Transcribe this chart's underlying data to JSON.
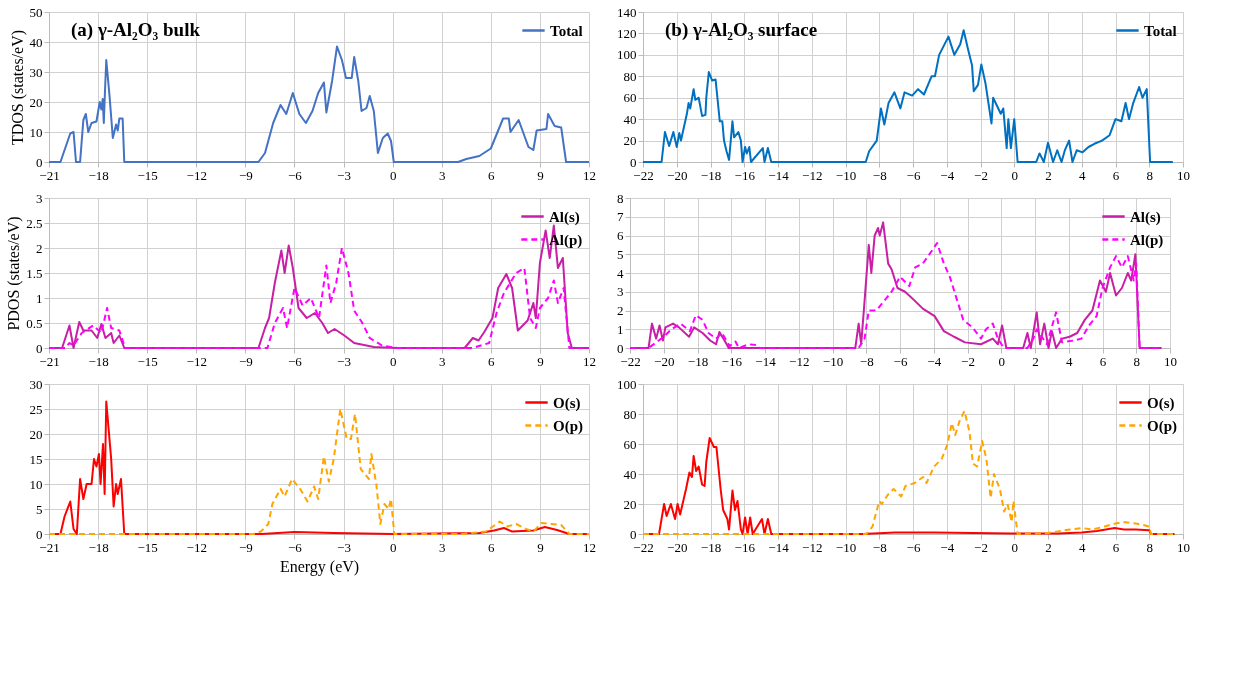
{
  "chart_data": [
    {
      "type": "line",
      "title": "(a) γ-Al₂O₃ bulk",
      "ylabel": "TDOS (states/eV)",
      "xlim": [
        -21,
        12
      ],
      "xticks": [
        -21,
        -18,
        -15,
        -12,
        -9,
        -6,
        -3,
        0,
        3,
        6,
        9,
        12
      ],
      "ylim": [
        0,
        50
      ],
      "yticks": [
        0,
        10,
        20,
        30,
        40,
        50
      ],
      "grid": true,
      "legend": "top right",
      "series": [
        {
          "name": "Total",
          "color": "#4472c4",
          "line_style": "solid",
          "x": [
            -21,
            -20.3,
            -19.7,
            -19.5,
            -19.35,
            -19.1,
            -18.9,
            -18.75,
            -18.6,
            -18.4,
            -18.1,
            -17.9,
            -17.8,
            -17.72,
            -17.65,
            -17.58,
            -17.5,
            -17.3,
            -17.1,
            -16.9,
            -16.8,
            -16.7,
            -16.5,
            -16.4,
            -8.2,
            -7.8,
            -7.3,
            -6.85,
            -6.5,
            -6.1,
            -5.7,
            -5.3,
            -4.9,
            -4.55,
            -4.2,
            -4.05,
            -3.7,
            -3.4,
            -3.1,
            -2.85,
            -2.5,
            -2.35,
            -2.1,
            -1.9,
            -1.6,
            -1.4,
            -1.15,
            -0.9,
            -0.6,
            -0.3,
            -0.1,
            0.07,
            4.0,
            4.5,
            5.3,
            6.0,
            6.75,
            7.1,
            7.2,
            7.7,
            8.3,
            8.6,
            8.8,
            9.4,
            9.5,
            9.9,
            10.3,
            10.6,
            12
          ],
          "values": [
            0,
            0,
            9.5,
            10,
            0,
            0,
            14,
            16,
            10,
            13,
            13.5,
            20,
            17.5,
            21,
            13,
            23.5,
            34,
            22,
            8,
            12.5,
            10.5,
            14.5,
            14.5,
            0,
            0,
            3,
            13,
            19,
            16,
            23,
            16,
            13,
            17,
            23,
            26.5,
            16.5,
            27,
            38.5,
            34,
            28,
            28,
            35,
            27,
            17,
            18,
            22,
            17,
            3,
            8,
            9.5,
            7,
            0,
            0,
            1,
            2,
            4.5,
            14.5,
            14.5,
            10,
            14,
            5,
            4,
            10.5,
            11,
            16,
            12,
            11.5,
            0,
            0
          ]
        }
      ]
    },
    {
      "type": "line",
      "title": "(b) γ-Al₂O₃ surface",
      "xlim": [
        -22,
        10
      ],
      "xticks": [
        -22,
        -20,
        -18,
        -16,
        -14,
        -12,
        -10,
        -8,
        -6,
        -4,
        -2,
        0,
        2,
        4,
        6,
        8,
        10
      ],
      "ylim": [
        0,
        140
      ],
      "yticks": [
        0,
        20,
        40,
        60,
        80,
        100,
        120,
        140
      ],
      "grid": true,
      "legend": "top right",
      "series": [
        {
          "name": "Total",
          "color": "#0070c0",
          "line_style": "solid",
          "x": [
            -22,
            -20.9,
            -20.7,
            -20.45,
            -20.2,
            -20.0,
            -19.85,
            -19.75,
            -19.4,
            -19.3,
            -19.2,
            -19.0,
            -18.9,
            -18.7,
            -18.5,
            -18.3,
            -18.25,
            -18.1,
            -17.9,
            -17.7,
            -17.45,
            -17.3,
            -17.2,
            -17.05,
            -16.9,
            -16.7,
            -16.6,
            -16.35,
            -16.2,
            -16.1,
            -15.95,
            -15.85,
            -15.7,
            -15.6,
            -14.9,
            -14.8,
            -14.6,
            -14.4,
            -8.8,
            -8.6,
            -8.15,
            -7.9,
            -7.7,
            -7.45,
            -7.1,
            -6.75,
            -6.5,
            -6.05,
            -5.7,
            -5.35,
            -4.9,
            -4.7,
            -4.45,
            -3.9,
            -3.55,
            -3.2,
            -3.0,
            -2.75,
            -2.5,
            -2.4,
            -2.15,
            -1.95,
            -1.7,
            -1.35,
            -1.25,
            -0.8,
            -0.65,
            -0.45,
            -0.35,
            -0.2,
            0.0,
            0.2,
            1.3,
            1.5,
            1.75,
            2.0,
            2.3,
            2.55,
            2.8,
            3.0,
            3.25,
            3.45,
            3.7,
            4.05,
            4.4,
            4.75,
            5.2,
            5.65,
            6.0,
            6.35,
            6.6,
            6.8,
            7.05,
            7.4,
            7.6,
            7.85,
            8.05,
            9.4
          ],
          "values": [
            0,
            0,
            28,
            15,
            28,
            14,
            27,
            20,
            45,
            55,
            50,
            68,
            58,
            60,
            43,
            44,
            60,
            84,
            76,
            77,
            38,
            38,
            20,
            10,
            2,
            38,
            23,
            28,
            20,
            0,
            14,
            8,
            14,
            0,
            13,
            0,
            13,
            0,
            0,
            10,
            20,
            50,
            35,
            55,
            65,
            50,
            65,
            62,
            68,
            63,
            80,
            80,
            100,
            117,
            100,
            110,
            123,
            106,
            90,
            66,
            72,
            91,
            73,
            36,
            60,
            45,
            50,
            13,
            40,
            13,
            40,
            0,
            0,
            8,
            0,
            18,
            0,
            11,
            0,
            11,
            20,
            0,
            11,
            9,
            14,
            17,
            20,
            25,
            40,
            38,
            55,
            40,
            55,
            70,
            60,
            68,
            0,
            0
          ]
        }
      ]
    },
    {
      "type": "line",
      "ylabel": "PDOS (states/eV)",
      "xlim": [
        -21,
        12
      ],
      "xticks": [
        -21,
        -18,
        -15,
        -12,
        -9,
        -6,
        -3,
        0,
        3,
        6,
        9,
        12
      ],
      "ylim": [
        0,
        3
      ],
      "yticks": [
        0,
        0.5,
        1,
        1.5,
        2,
        2.5,
        3
      ],
      "grid": true,
      "legend": "top right",
      "series": [
        {
          "name": "Al(s)",
          "color": "#c71fa5",
          "line_style": "solid",
          "x": [
            -21,
            -20.2,
            -19.75,
            -19.5,
            -19.15,
            -18.9,
            -18.4,
            -18.05,
            -17.8,
            -17.55,
            -17.2,
            -17.05,
            -16.7,
            -16.4,
            -8.2,
            -7.8,
            -7.55,
            -7.2,
            -6.8,
            -6.6,
            -6.35,
            -6.1,
            -5.75,
            -5.25,
            -4.75,
            -4.3,
            -3.95,
            -3.55,
            -2.95,
            -2.35,
            -1.15,
            0.3,
            4.4,
            4.9,
            5.25,
            5.6,
            6.1,
            6.45,
            6.95,
            7.3,
            7.65,
            8.25,
            8.6,
            8.75,
            9.0,
            9.35,
            9.6,
            9.85,
            10.1,
            10.4,
            10.7,
            10.95,
            12
          ],
          "values": [
            0,
            0,
            0.45,
            0,
            0.52,
            0.35,
            0.35,
            0.2,
            0.48,
            0.2,
            0.3,
            0.1,
            0.25,
            0,
            0,
            0.4,
            0.6,
            1.3,
            1.95,
            1.5,
            2.05,
            1.6,
            0.8,
            0.6,
            0.7,
            0.5,
            0.3,
            0.38,
            0.25,
            0.1,
            0.02,
            0,
            0,
            0.2,
            0.15,
            0.32,
            0.6,
            1.2,
            1.48,
            1.2,
            0.35,
            0.55,
            0.9,
            0.6,
            1.7,
            2.35,
            1.8,
            2.45,
            1.6,
            1.8,
            0.3,
            0,
            0
          ]
        },
        {
          "name": "Al(p)",
          "color": "#ff00ff",
          "line_style": "dashed",
          "x": [
            -21,
            -20,
            -19.75,
            -19.5,
            -19.0,
            -18.3,
            -17.8,
            -17.45,
            -17.2,
            -16.7,
            -16.35,
            -7.65,
            -7.2,
            -6.7,
            -6.45,
            -6.0,
            -5.5,
            -5.0,
            -4.5,
            -4.05,
            -3.8,
            -3.45,
            -3.1,
            -2.7,
            -2.35,
            -1.85,
            -1.4,
            -0.65,
            0.3,
            4.9,
            5.9,
            6.35,
            6.8,
            7.55,
            8.05,
            8.4,
            8.75,
            9.0,
            9.5,
            9.85,
            10.1,
            10.45,
            10.8,
            12
          ],
          "values": [
            0,
            0,
            0.1,
            0.05,
            0.3,
            0.45,
            0.3,
            0.8,
            0.4,
            0.35,
            0,
            0,
            0.5,
            0.8,
            0.4,
            1.2,
            0.85,
            1.0,
            0.6,
            1.65,
            0.9,
            1.3,
            2.0,
            1.5,
            0.75,
            0.5,
            0.2,
            0.05,
            0,
            0,
            0.1,
            0.7,
            1.1,
            1.5,
            1.6,
            0.6,
            0.4,
            0.8,
            1.0,
            1.35,
            0.9,
            1.2,
            0,
            0
          ]
        }
      ]
    },
    {
      "type": "line",
      "xlim": [
        -22,
        10
      ],
      "xticks": [
        -22,
        -20,
        -18,
        -16,
        -14,
        -12,
        -10,
        -8,
        -6,
        -4,
        -2,
        0,
        2,
        4,
        6,
        8,
        10
      ],
      "ylim": [
        0,
        8
      ],
      "yticks": [
        0,
        1,
        2,
        3,
        4,
        5,
        6,
        7,
        8
      ],
      "grid": true,
      "legend": "top right",
      "series": [
        {
          "name": "Al(s)",
          "color": "#c71fa5",
          "line_style": "solid",
          "x": [
            -22,
            -20.9,
            -20.7,
            -20.45,
            -20.25,
            -20.05,
            -19.9,
            -19.45,
            -19.1,
            -18.5,
            -18.2,
            -17.7,
            -17.25,
            -16.9,
            -16.7,
            -16.4,
            -16.15,
            -8.65,
            -8.45,
            -8.3,
            -8.1,
            -7.85,
            -7.7,
            -7.5,
            -7.3,
            -7.2,
            -7.0,
            -6.7,
            -6.5,
            -6.15,
            -5.7,
            -5.1,
            -4.65,
            -3.95,
            -3.4,
            -2.8,
            -2.15,
            -1.2,
            -0.5,
            -0.2,
            0.05,
            0.3,
            1.3,
            1.55,
            1.75,
            2.1,
            2.3,
            2.55,
            2.8,
            3.0,
            3.25,
            3.6,
            4.05,
            4.5,
            4.95,
            5.4,
            5.85,
            6.2,
            6.45,
            6.8,
            7.15,
            7.5,
            7.7,
            7.95,
            8.2,
            9.5
          ],
          "values": [
            0,
            0,
            1.3,
            0.5,
            1.2,
            0.4,
            1.1,
            1.3,
            1.1,
            0.6,
            1.1,
            0.8,
            0.4,
            0.2,
            0.85,
            0.4,
            0,
            0,
            1.3,
            0.2,
            2.5,
            5.5,
            4.0,
            6.0,
            6.4,
            6.0,
            6.7,
            4.5,
            4.2,
            3.2,
            3.0,
            2.5,
            2.1,
            1.7,
            0.9,
            0.6,
            0.3,
            0.2,
            0.5,
            0.2,
            1.2,
            0,
            0,
            0.8,
            0,
            1.9,
            0.2,
            1.3,
            0,
            0.9,
            0,
            0.5,
            0.6,
            0.8,
            1.5,
            2.0,
            3.6,
            3.0,
            4.0,
            2.8,
            3.2,
            4.0,
            3.6,
            5.0,
            0,
            0
          ]
        },
        {
          "name": "Al(p)",
          "color": "#ff00ff",
          "line_style": "dashed",
          "x": [
            -22,
            -20.9,
            -20.45,
            -20.0,
            -19.55,
            -19.0,
            -18.45,
            -18.1,
            -17.7,
            -17.35,
            -16.9,
            -16.55,
            -16.1,
            -15.75,
            -15.55,
            -14.95,
            -14.5,
            -14.3,
            -8.45,
            -8.1,
            -7.85,
            -7.4,
            -6.95,
            -6.5,
            -6.0,
            -5.45,
            -5.1,
            -4.65,
            -4.1,
            -3.8,
            -3.4,
            -3.05,
            -2.6,
            -2.25,
            -1.7,
            -1.2,
            -0.9,
            -0.5,
            -0.2,
            0.15,
            1.55,
            1.9,
            2.1,
            2.7,
            3.25,
            3.6,
            4.3,
            4.75,
            5.2,
            5.65,
            6.0,
            6.45,
            6.8,
            7.15,
            7.5,
            7.85,
            8.0,
            8.2,
            9.5
          ],
          "values": [
            0,
            0,
            0.3,
            0.6,
            1.0,
            1.3,
            0.9,
            1.75,
            1.5,
            0.8,
            0.5,
            0.8,
            0.1,
            0.35,
            0,
            0.2,
            0.15,
            0,
            0,
            0.5,
            2.0,
            2.0,
            2.5,
            3.0,
            3.8,
            3.3,
            4.3,
            4.5,
            5.2,
            5.6,
            4.5,
            3.8,
            2.5,
            1.5,
            1.1,
            0.5,
            1.0,
            1.3,
            0.5,
            0,
            0,
            0.5,
            1.0,
            0.2,
            1.9,
            0.3,
            0.4,
            0.5,
            1.2,
            1.7,
            3.2,
            4.3,
            4.9,
            4.3,
            4.9,
            3.6,
            4.5,
            0,
            0
          ]
        }
      ]
    },
    {
      "type": "line",
      "xlabel": "Energy (eV)",
      "xlim": [
        -21,
        12
      ],
      "xticks": [
        -21,
        -18,
        -15,
        -12,
        -9,
        -6,
        -3,
        0,
        3,
        6,
        9,
        12
      ],
      "ylim": [
        0,
        30
      ],
      "yticks": [
        0,
        5,
        10,
        15,
        20,
        25,
        30
      ],
      "grid": true,
      "legend": "top right",
      "series": [
        {
          "name": "O(s)",
          "color": "#ff0000",
          "line_style": "solid",
          "x": [
            -21,
            -20.3,
            -20.05,
            -19.7,
            -19.5,
            -19.3,
            -19.1,
            -18.9,
            -18.7,
            -18.4,
            -18.25,
            -18.1,
            -17.95,
            -17.85,
            -17.7,
            -17.6,
            -17.5,
            -17.2,
            -17.05,
            -16.9,
            -16.8,
            -16.6,
            -16.4,
            -8.0,
            -6.0,
            -3.6,
            0.0,
            5.3,
            6.2,
            6.8,
            7.3,
            7.9,
            8.6,
            9.3,
            10.05,
            10.8,
            12
          ],
          "values": [
            0,
            0,
            3.5,
            6.5,
            1,
            0,
            11,
            7,
            10,
            10,
            15,
            13.5,
            16,
            10,
            18,
            8,
            26.5,
            15,
            5.5,
            10,
            8,
            11,
            0,
            0,
            0.4,
            0.2,
            0,
            0.2,
            0.7,
            1.2,
            0.5,
            0.6,
            0.7,
            1.4,
            0.8,
            0,
            0
          ]
        },
        {
          "name": "O(p)",
          "color": "#ffa500",
          "line_style": "dashed",
          "x": [
            -21,
            -8.5,
            -8.05,
            -7.6,
            -7.35,
            -6.85,
            -6.6,
            -6.15,
            -5.65,
            -5.2,
            -4.8,
            -4.55,
            -4.2,
            -3.9,
            -3.6,
            -3.2,
            -2.8,
            -2.55,
            -2.3,
            -1.95,
            -1.45,
            -1.3,
            -1.0,
            -0.75,
            -0.5,
            -0.25,
            -0.1,
            0.1,
            4.3,
            5.7,
            6.55,
            7.0,
            7.55,
            8.15,
            8.6,
            9.1,
            9.7,
            10.3,
            10.8,
            12
          ],
          "values": [
            0,
            0,
            0.5,
            2,
            6,
            9,
            7.5,
            11,
            9,
            6.5,
            9.5,
            7,
            15.5,
            10.5,
            15,
            25,
            19,
            19,
            24,
            13,
            11,
            16,
            10,
            2,
            6,
            5,
            7,
            0,
            0,
            0.5,
            2.5,
            1.5,
            2.0,
            1.0,
            0.5,
            2.2,
            2.0,
            1.8,
            0,
            0
          ]
        }
      ]
    },
    {
      "type": "line",
      "xlim": [
        -22,
        10
      ],
      "xticks": [
        -22,
        -20,
        -18,
        -16,
        -14,
        -12,
        -10,
        -8,
        -6,
        -4,
        -2,
        0,
        2,
        4,
        6,
        8,
        10
      ],
      "ylim": [
        0,
        100
      ],
      "yticks": [
        0,
        20,
        40,
        60,
        80,
        100
      ],
      "grid": true,
      "legend": "top right",
      "series": [
        {
          "name": "O(s)",
          "color": "#ff0000",
          "line_style": "solid",
          "x": [
            -22,
            -21.05,
            -20.75,
            -20.6,
            -20.35,
            -20.1,
            -19.95,
            -19.8,
            -19.45,
            -19.25,
            -19.1,
            -19.0,
            -18.85,
            -18.7,
            -18.5,
            -18.35,
            -18.25,
            -18.05,
            -17.8,
            -17.65,
            -17.4,
            -17.25,
            -17.0,
            -16.9,
            -16.7,
            -16.55,
            -16.4,
            -16.2,
            -16.1,
            -15.95,
            -15.8,
            -15.65,
            -15.5,
            -14.95,
            -14.8,
            -14.6,
            -14.4,
            -9.0,
            -7.05,
            -4.75,
            -0.15,
            2.6,
            4.0,
            4.9,
            5.95,
            6.5,
            7.2,
            8.0,
            8.1,
            9.5
          ],
          "values": [
            0,
            0,
            20,
            12,
            20,
            10,
            20,
            13,
            30,
            41,
            38,
            52,
            42,
            45,
            33,
            32,
            48,
            64,
            58,
            58,
            30,
            16,
            10,
            3,
            29,
            16,
            22,
            3,
            0,
            11,
            0,
            11,
            0,
            10,
            0,
            10,
            0,
            0,
            1,
            1,
            0.3,
            0.3,
            1,
            2,
            4,
            3,
            3,
            2.5,
            0,
            0
          ]
        },
        {
          "name": "O(p)",
          "color": "#ffa500",
          "line_style": "dashed",
          "x": [
            -22,
            -8.75,
            -8.4,
            -8.0,
            -7.85,
            -7.5,
            -7.15,
            -6.7,
            -6.45,
            -5.9,
            -5.4,
            -5.2,
            -4.75,
            -4.3,
            -3.95,
            -3.7,
            -3.5,
            -3.25,
            -2.95,
            -2.65,
            -2.45,
            -2.2,
            -1.9,
            -1.65,
            -1.4,
            -1.2,
            -0.85,
            -0.6,
            -0.4,
            -0.15,
            -0.05,
            0.2,
            1.9,
            3.3,
            4.0,
            4.65,
            5.35,
            6.0,
            6.45,
            7.2,
            7.65,
            8.0,
            8.1,
            9.5
          ],
          "values": [
            0,
            0,
            5,
            22,
            20,
            26,
            30,
            25,
            32,
            34,
            38,
            34,
            45,
            50,
            60,
            74,
            66,
            75,
            82,
            68,
            47,
            45,
            62,
            50,
            24,
            40,
            30,
            15,
            20,
            8,
            22,
            0,
            0.5,
            3,
            4,
            3,
            5,
            7,
            8,
            7,
            6,
            5,
            0,
            0
          ]
        }
      ]
    }
  ]
}
